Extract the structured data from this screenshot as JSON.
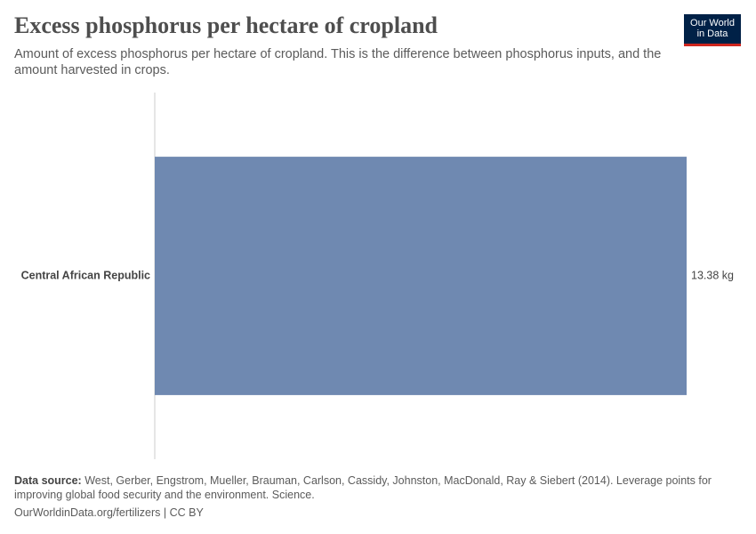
{
  "chart_data": {
    "type": "bar",
    "orientation": "horizontal",
    "title": "Excess phosphorus per hectare of cropland",
    "subtitle": "Amount of excess phosphorus per hectare of cropland. This is the difference between phosphorus inputs, and the amount harvested in crops.",
    "logo": [
      "Our World",
      "in Data"
    ],
    "categories": [
      "Central African Republic"
    ],
    "values": [
      13.38
    ],
    "value_labels": [
      "13.38 kg"
    ],
    "color": "#6f89b1",
    "source_label": "Data source:",
    "source": "West, Gerber, Engstrom, Mueller, Brauman, Carlson, Cassidy, Johnston, MacDonald, Ray & Siebert (2014). Leverage points for improving global food security and the environment. Science.",
    "footer": "OurWorldinData.org/fertilizers | CC BY"
  }
}
